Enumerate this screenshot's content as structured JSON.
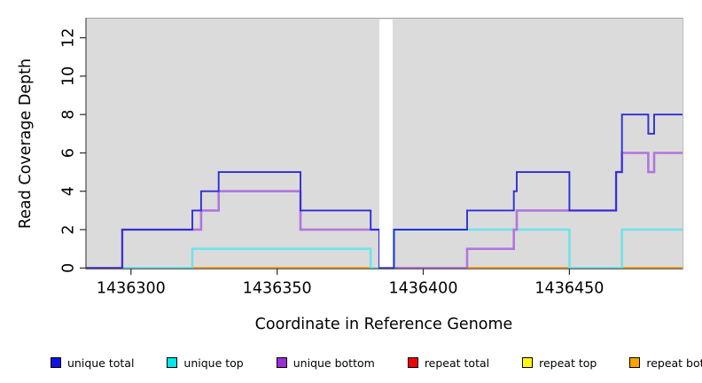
{
  "chart_data": {
    "type": "line",
    "style": "step",
    "title": "",
    "xlabel": "Coordinate in Reference Genome",
    "ylabel": "Read Coverage Depth",
    "xlim": [
      1436284.6,
      1436488.7
    ],
    "ylim": [
      0,
      13
    ],
    "x_ticks": [
      1436300,
      1436350,
      1436400,
      1436450
    ],
    "y_ticks": [
      0,
      2,
      4,
      6,
      8,
      10,
      12
    ],
    "grid": false,
    "legend_position": "bottom",
    "plot_bg": "#dbdbdb",
    "masked_region": {
      "start": 1436385,
      "end": 1436389.5,
      "color": "#ffffff"
    },
    "series": [
      {
        "name": "unique total",
        "line_color": "#2e2ed8",
        "swatch_color": "#1212e0",
        "start_depth": 0,
        "steps": [
          [
            1436297,
            2
          ],
          [
            1436321,
            3
          ],
          [
            1436324,
            4
          ],
          [
            1436330,
            5
          ],
          [
            1436358,
            3
          ],
          [
            1436382,
            2
          ],
          [
            1436385,
            0
          ],
          [
            1436390,
            2
          ],
          [
            1436415,
            3
          ],
          [
            1436431,
            4
          ],
          [
            1436432,
            5
          ],
          [
            1436450,
            3
          ],
          [
            1436466,
            5
          ],
          [
            1436468,
            8
          ],
          [
            1436477,
            7
          ],
          [
            1436479,
            8
          ]
        ]
      },
      {
        "name": "unique top",
        "line_color": "#6fe3ea",
        "swatch_color": "#00e8e8",
        "start_depth": 0,
        "steps": [
          [
            1436321,
            1
          ],
          [
            1436382,
            0
          ],
          [
            1436390,
            2
          ],
          [
            1436450,
            0
          ],
          [
            1436468,
            2
          ]
        ]
      },
      {
        "name": "unique bottom",
        "line_color": "#b175e0",
        "swatch_color": "#9b2fd4",
        "start_depth": 0,
        "steps": [
          [
            1436297,
            2
          ],
          [
            1436324,
            3
          ],
          [
            1436330,
            4
          ],
          [
            1436358,
            2
          ],
          [
            1436385,
            0
          ],
          [
            1436415,
            1
          ],
          [
            1436431,
            2
          ],
          [
            1436432,
            3
          ],
          [
            1436466,
            5
          ],
          [
            1436468,
            6
          ],
          [
            1436477,
            5
          ],
          [
            1436479,
            6
          ]
        ]
      },
      {
        "name": "repeat total",
        "line_color": "#dd2626",
        "swatch_color": "#ee0000",
        "start_depth": 0,
        "steps": []
      },
      {
        "name": "repeat top",
        "line_color": "#f0f000",
        "swatch_color": "#ffff00",
        "start_depth": 0,
        "steps": []
      },
      {
        "name": "repeat bottom",
        "line_color": "#ff9f17",
        "swatch_color": "#ffa500",
        "start_depth": 0,
        "steps": []
      }
    ],
    "draw_order": [
      3,
      4,
      5,
      1,
      2,
      0
    ]
  }
}
